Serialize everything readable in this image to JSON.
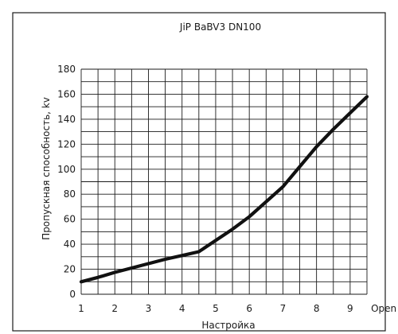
{
  "chart_data": {
    "type": "line",
    "title": "JiP BaBV3 DN100",
    "xlabel": "Настройка",
    "ylabel": "Пропускная способность, kv",
    "x_tick_labels": [
      "1",
      "2",
      "3",
      "4",
      "5",
      "6",
      "7",
      "8",
      "9",
      "Open"
    ],
    "y_ticks": [
      0,
      20,
      40,
      60,
      80,
      100,
      120,
      140,
      160,
      180
    ],
    "xlim": [
      1,
      9.5
    ],
    "ylim": [
      0,
      180
    ],
    "grid": true,
    "series": [
      {
        "x": [
          1,
          1.5,
          2,
          2.5,
          3,
          3.5,
          4,
          4.5,
          5,
          5.5,
          6,
          6.5,
          7,
          7.5,
          8,
          8.5,
          9,
          9.5
        ],
        "y": [
          10,
          13.5,
          17.5,
          21,
          24.5,
          28,
          31,
          34,
          43,
          52,
          62,
          74,
          86,
          102,
          118,
          132,
          145,
          158
        ]
      }
    ]
  }
}
